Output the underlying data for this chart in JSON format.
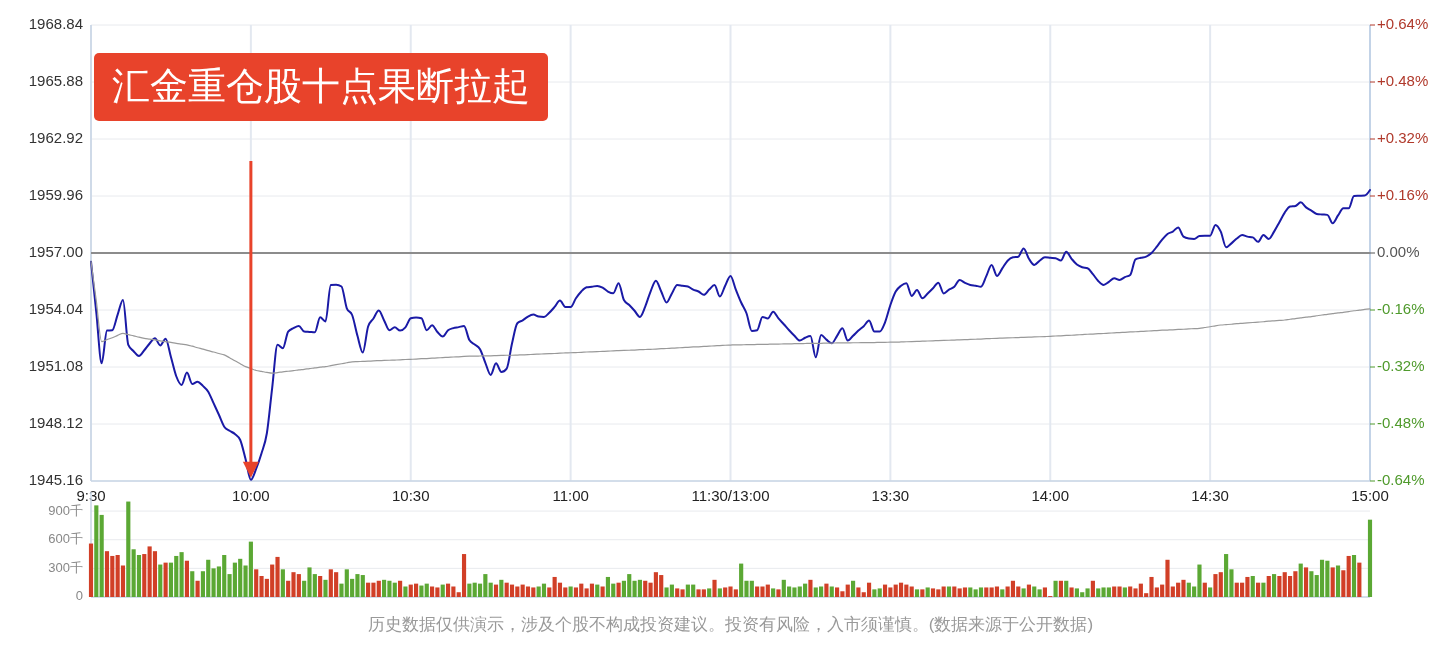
{
  "chart_data": [
    {
      "type": "line",
      "categories": [
        "9:30",
        null,
        null,
        null,
        null,
        null,
        null,
        null,
        null,
        null,
        null,
        null,
        null,
        null,
        null,
        null,
        null,
        null,
        null,
        null,
        null,
        null,
        null,
        null,
        null,
        null,
        null,
        null,
        null,
        null,
        "10:00",
        null,
        null,
        null,
        null,
        null,
        null,
        null,
        null,
        null,
        null,
        null,
        null,
        null,
        null,
        null,
        null,
        null,
        null,
        null,
        null,
        null,
        null,
        null,
        null,
        null,
        null,
        null,
        null,
        null,
        "10:30",
        null,
        null,
        null,
        null,
        null,
        null,
        null,
        null,
        null,
        null,
        null,
        null,
        null,
        null,
        null,
        null,
        null,
        null,
        null,
        null,
        null,
        null,
        null,
        null,
        null,
        null,
        null,
        null,
        null,
        "11:00",
        null,
        null,
        null,
        null,
        null,
        null,
        null,
        null,
        null,
        null,
        null,
        null,
        null,
        null,
        null,
        null,
        null,
        null,
        null,
        null,
        null,
        null,
        null,
        null,
        null,
        null,
        null,
        null,
        null,
        "11:30/13:00",
        null,
        null,
        null,
        null,
        null,
        null,
        null,
        null,
        null,
        null,
        null,
        null,
        null,
        null,
        null,
        null,
        null,
        null,
        null,
        null,
        null,
        null,
        null,
        null,
        null,
        null,
        null,
        null,
        null,
        "13:30",
        null,
        null,
        null,
        null,
        null,
        null,
        null,
        null,
        null,
        null,
        null,
        null,
        null,
        null,
        null,
        null,
        null,
        null,
        null,
        null,
        null,
        null,
        null,
        null,
        null,
        null,
        null,
        null,
        null,
        "14:00",
        null,
        null,
        null,
        null,
        null,
        null,
        null,
        null,
        null,
        null,
        null,
        null,
        null,
        null,
        null,
        null,
        null,
        null,
        null,
        null,
        null,
        null,
        null,
        null,
        null,
        null,
        null,
        null,
        null,
        "14:30",
        null,
        null,
        null,
        null,
        null,
        null,
        null,
        null,
        null,
        null,
        null,
        null,
        null,
        null,
        null,
        null,
        null,
        null,
        null,
        null,
        null,
        null,
        null,
        null,
        null,
        null,
        null,
        null,
        null,
        "15:00"
      ],
      "ylim": [
        1945.16,
        1968.84
      ],
      "yticks": [
        1945.16,
        1948.12,
        1951.08,
        1954.04,
        {
          "value": 1957,
          "label": "1957.00"
        },
        1959.96,
        1962.92,
        1965.88,
        1968.84
      ],
      "y2lim": [
        -0.64,
        0.64
      ],
      "y2ticks": [
        {
          "value": -0.64,
          "label": "-0.64%"
        },
        {
          "value": -0.48,
          "label": "-0.48%"
        },
        {
          "value": -0.32,
          "label": "-0.32%"
        },
        {
          "value": -0.16,
          "label": "-0.16%"
        },
        {
          "value": 0,
          "label": "0.00%"
        },
        {
          "value": 0.16,
          "label": "+0.16%"
        },
        {
          "value": 0.32,
          "label": "+0.32%"
        },
        {
          "value": 0.48,
          "label": "+0.48%"
        },
        {
          "value": 0.64,
          "label": "+0.64%"
        }
      ],
      "grid": true,
      "ref_lines": [
        {
          "axis": "y",
          "value": 1957,
          "color": "#8c8c8c"
        }
      ],
      "series": [
        {
          "color": "#1a1aa6",
          "values": [
            1956.55,
            1953.9,
            1951.27,
            1952.97,
            1952.99,
            1953.8,
            1954.56,
            1952.23,
            1951.9,
            1951.65,
            1951.95,
            1952.3,
            1952.57,
            1952.2,
            1952.55,
            1951.6,
            1950.6,
            1950.15,
            1950.79,
            1950.2,
            1950.32,
            1950.1,
            1949.8,
            1949.2,
            1948.6,
            1947.98,
            1947.77,
            1947.6,
            1947.29,
            1946.3,
            1945.22,
            1945.8,
            1946.6,
            1947.64,
            1950.0,
            1952.23,
            1952.05,
            1952.92,
            1953.1,
            1953.21,
            1952.92,
            1952.9,
            1952.88,
            1953.66,
            1953.44,
            1955.34,
            1955.35,
            1955.26,
            1954.13,
            1953.78,
            1952.7,
            1951.83,
            1953.18,
            1953.6,
            1954.01,
            1953.5,
            1952.99,
            1953.14,
            1952.97,
            1953.14,
            1953.61,
            1953.65,
            1953.61,
            1952.99,
            1953.25,
            1952.9,
            1952.66,
            1952.99,
            1953.1,
            1953.15,
            1953.21,
            1952.48,
            1952.25,
            1952.0,
            1951.3,
            1950.67,
            1951.27,
            1950.82,
            1951.0,
            1952.3,
            1953.35,
            1953.5,
            1953.7,
            1953.8,
            1953.7,
            1953.68,
            1953.9,
            1954.2,
            1954.53,
            1954.2,
            1954.19,
            1954.65,
            1955.0,
            1955.22,
            1955.25,
            1955.29,
            1955.2,
            1955.0,
            1954.91,
            1955.43,
            1954.56,
            1954.3,
            1954.0,
            1953.68,
            1954.22,
            1955.0,
            1955.56,
            1955.0,
            1954.43,
            1954.9,
            1955.34,
            1955.3,
            1955.26,
            1955.1,
            1955.0,
            1954.83,
            1955.1,
            1955.34,
            1954.74,
            1955.3,
            1955.81,
            1955.1,
            1954.43,
            1953.87,
            1952.95,
            1952.99,
            1953.68,
            1953.6,
            1953.95,
            1953.6,
            1953.3,
            1952.99,
            1952.7,
            1952.45,
            1952.6,
            1952.69,
            1951.58,
            1952.74,
            1952.5,
            1952.31,
            1952.7,
            1953.09,
            1952.45,
            1952.7,
            1952.97,
            1953.2,
            1953.49,
            1952.92,
            1952.92,
            1953.4,
            1954.3,
            1955.0,
            1955.3,
            1955.43,
            1954.77,
            1955.08,
            1954.65,
            1954.9,
            1955.17,
            1955.46,
            1954.9,
            1955.1,
            1955.25,
            1955.6,
            1955.45,
            1955.34,
            1955.3,
            1955.25,
            1955.8,
            1956.38,
            1955.81,
            1956.2,
            1956.6,
            1956.78,
            1956.81,
            1957.24,
            1956.7,
            1956.38,
            1956.6,
            1956.78,
            1956.75,
            1956.73,
            1956.61,
            1957.07,
            1956.7,
            1956.4,
            1956.26,
            1956.21,
            1955.9,
            1955.55,
            1955.34,
            1955.5,
            1955.69,
            1955.6,
            1955.75,
            1955.86,
            1956.67,
            1956.75,
            1956.81,
            1957.0,
            1957.33,
            1957.7,
            1957.99,
            1958.11,
            1958.33,
            1957.85,
            1957.75,
            1957.73,
            1957.88,
            1957.9,
            1957.9,
            1958.46,
            1958.11,
            1957.3,
            1957.5,
            1957.75,
            1957.93,
            1957.85,
            1957.81,
            1957.58,
            1957.93,
            1957.73,
            1958.11,
            1958.6,
            1959.1,
            1959.41,
            1959.44,
            1959.63,
            1959.37,
            1959.2,
            1959.03,
            1959.0,
            1958.98,
            1958.54,
            1958.95,
            1959.32,
            1959.32,
            1959.96,
            1959.97,
            1959.98,
            1960.27
          ]
        },
        {
          "color": "#999999",
          "values": [
            1956.55,
            1954.5,
            1952.4,
            1952.5,
            1952.6,
            1952.72,
            1952.83,
            1952.76,
            1952.7,
            1952.63,
            1952.57,
            1952.53,
            1952.49,
            1952.44,
            1952.4,
            1952.36,
            1952.31,
            1952.27,
            1952.23,
            1952.16,
            1952.08,
            1952.01,
            1951.93,
            1951.86,
            1951.78,
            1951.71,
            1951.56,
            1951.4,
            1951.25,
            1951.1,
            1951.0,
            1950.9,
            1950.85,
            1950.8,
            1950.76,
            1950.79,
            1950.83,
            1950.86,
            1950.89,
            1950.93,
            1950.96,
            1951.0,
            1951.03,
            1951.07,
            1951.1,
            1951.15,
            1951.2,
            1951.25,
            1951.3,
            1951.35,
            1951.36,
            1951.37,
            1951.38,
            1951.4,
            1951.41,
            1951.42,
            1951.43,
            1951.44,
            1951.45,
            1951.47,
            1951.48,
            1951.49,
            1951.51,
            1951.52,
            1951.54,
            1951.55,
            1951.57,
            1951.58,
            1951.6,
            1951.61,
            1951.63,
            1951.64,
            1951.64,
            1951.65,
            1951.66,
            1951.66,
            1951.67,
            1951.68,
            1951.69,
            1951.69,
            1951.7,
            1951.71,
            1951.72,
            1951.74,
            1951.75,
            1951.76,
            1951.77,
            1951.78,
            1951.8,
            1951.81,
            1951.82,
            1951.83,
            1951.84,
            1951.86,
            1951.87,
            1951.88,
            1951.89,
            1951.9,
            1951.92,
            1951.93,
            1951.94,
            1951.95,
            1951.96,
            1951.98,
            1951.99,
            1952.0,
            1952.01,
            1952.03,
            1952.04,
            1952.06,
            1952.07,
            1952.09,
            1952.1,
            1952.12,
            1952.13,
            1952.15,
            1952.16,
            1952.18,
            1952.19,
            1952.21,
            1952.22,
            1952.23,
            1952.23,
            1952.24,
            1952.24,
            1952.25,
            1952.25,
            1952.26,
            1952.27,
            1952.27,
            1952.28,
            1952.28,
            1952.29,
            1952.29,
            1952.3,
            1952.31,
            1952.31,
            1952.31,
            1952.32,
            1952.32,
            1952.33,
            1952.33,
            1952.33,
            1952.34,
            1952.34,
            1952.35,
            1952.35,
            1952.35,
            1952.36,
            1952.36,
            1952.37,
            1952.37,
            1952.38,
            1952.39,
            1952.4,
            1952.41,
            1952.42,
            1952.43,
            1952.44,
            1952.45,
            1952.46,
            1952.47,
            1952.48,
            1952.49,
            1952.5,
            1952.51,
            1952.52,
            1952.53,
            1952.55,
            1952.56,
            1952.57,
            1952.58,
            1952.59,
            1952.6,
            1952.61,
            1952.62,
            1952.63,
            1952.64,
            1952.65,
            1952.66,
            1952.67,
            1952.69,
            1952.7,
            1952.72,
            1952.73,
            1952.75,
            1952.76,
            1952.78,
            1952.79,
            1952.81,
            1952.82,
            1952.84,
            1952.85,
            1952.87,
            1952.88,
            1952.9,
            1952.91,
            1952.93,
            1952.94,
            1952.96,
            1952.97,
            1952.99,
            1953.0,
            1953.01,
            1953.03,
            1953.04,
            1953.06,
            1953.07,
            1953.09,
            1953.13,
            1953.17,
            1953.22,
            1953.26,
            1953.28,
            1953.3,
            1953.33,
            1953.35,
            1953.37,
            1953.39,
            1953.41,
            1953.43,
            1953.46,
            1953.48,
            1953.5,
            1953.52,
            1953.56,
            1953.59,
            1953.63,
            1953.67,
            1953.7,
            1953.74,
            1953.78,
            1953.81,
            1953.85,
            1953.89,
            1953.92,
            1953.96,
            1954.0,
            1954.03,
            1954.07,
            1954.1
          ]
        }
      ],
      "annotations": [
        "汇金重仓股十点果断拉起",
        "历史数据仅供演示，涉及个股不构成投资建议。投资有风险，入市须谨慎。(数据来源于公开数据)"
      ]
    },
    {
      "type": "bar",
      "ylim": [
        0,
        1100
      ],
      "yticks": [
        0,
        {
          "value": 300,
          "label": "300千"
        },
        {
          "value": 600,
          "label": "600千"
        },
        {
          "value": 900,
          "label": "900千"
        }
      ],
      "grid": "y",
      "tick_labels": "y",
      "categories": [
        null,
        null,
        null,
        null,
        null,
        null,
        null,
        null,
        null,
        null,
        null,
        null,
        null,
        null,
        null,
        null,
        null,
        null,
        null,
        null,
        null,
        null,
        null,
        null,
        null,
        null,
        null,
        null,
        null,
        null,
        null,
        null,
        null,
        null,
        null,
        null,
        null,
        null,
        null,
        null,
        null,
        null,
        null,
        null,
        null,
        null,
        null,
        null,
        null,
        null,
        null,
        null,
        null,
        null,
        null,
        null,
        null,
        null,
        null,
        null,
        null,
        null,
        null,
        null,
        null,
        null,
        null,
        null,
        null,
        null,
        null,
        null,
        null,
        null,
        null,
        null,
        null,
        null,
        null,
        null,
        null,
        null,
        null,
        null,
        null,
        null,
        null,
        null,
        null,
        null,
        null,
        null,
        null,
        null,
        null,
        null,
        null,
        null,
        null,
        null,
        null,
        null,
        null,
        null,
        null,
        null,
        null,
        null,
        null,
        null,
        null,
        null,
        null,
        null,
        null,
        null,
        null,
        null,
        null,
        null,
        null,
        null,
        null,
        null,
        null,
        null,
        null,
        null,
        null,
        null,
        null,
        null,
        null,
        null,
        null,
        null,
        null,
        null,
        null,
        null,
        null,
        null,
        null,
        null,
        null,
        null,
        null,
        null,
        null,
        null,
        null,
        null,
        null,
        null,
        null,
        null,
        null,
        null,
        null,
        null,
        null,
        null,
        null,
        null,
        null,
        null,
        null,
        null,
        null,
        null,
        null,
        null,
        null,
        null,
        null,
        null,
        null,
        null,
        null,
        null,
        null,
        null,
        null,
        null,
        null,
        null,
        null,
        null,
        null,
        null,
        null,
        null,
        null,
        null,
        null,
        null,
        null,
        null,
        null,
        null,
        null,
        null,
        null,
        null,
        null,
        null,
        null,
        null,
        null,
        null,
        null,
        null,
        null,
        null,
        null,
        null,
        null,
        null,
        null,
        null,
        null,
        null,
        null,
        null,
        null,
        null,
        null,
        null,
        null,
        null,
        null,
        null,
        null,
        null,
        null,
        null,
        null,
        null,
        null,
        null,
        null
      ],
      "values": [
        560,
        960,
        860,
        480,
        430,
        440,
        330,
        1000,
        500,
        440,
        450,
        530,
        480,
        340,
        360,
        360,
        430,
        470,
        380,
        270,
        170,
        270,
        390,
        300,
        320,
        440,
        240,
        360,
        400,
        330,
        580,
        290,
        220,
        190,
        340,
        420,
        290,
        170,
        260,
        240,
        170,
        310,
        240,
        220,
        180,
        290,
        260,
        140,
        290,
        190,
        240,
        230,
        150,
        150,
        170,
        180,
        170,
        150,
        170,
        110,
        130,
        140,
        120,
        140,
        110,
        100,
        130,
        140,
        110,
        50,
        450,
        140,
        150,
        140,
        240,
        150,
        130,
        180,
        150,
        130,
        110,
        130,
        110,
        100,
        110,
        140,
        100,
        210,
        150,
        100,
        110,
        100,
        140,
        90,
        140,
        130,
        110,
        210,
        140,
        150,
        170,
        240,
        170,
        180,
        170,
        150,
        260,
        230,
        100,
        130,
        90,
        80,
        130,
        130,
        80,
        80,
        90,
        180,
        90,
        100,
        110,
        80,
        350,
        170,
        170,
        110,
        110,
        130,
        90,
        80,
        180,
        110,
        100,
        110,
        140,
        180,
        100,
        110,
        140,
        110,
        100,
        60,
        130,
        170,
        100,
        50,
        150,
        80,
        90,
        130,
        100,
        130,
        150,
        130,
        110,
        80,
        80,
        100,
        90,
        80,
        110,
        110,
        110,
        90,
        100,
        100,
        80,
        100,
        100,
        100,
        110,
        80,
        110,
        170,
        110,
        90,
        130,
        110,
        80,
        100,
        10,
        170,
        170,
        170,
        100,
        90,
        50,
        90,
        170,
        90,
        100,
        100,
        110,
        110,
        100,
        110,
        90,
        140,
        40,
        210,
        100,
        130,
        390,
        110,
        150,
        180,
        150,
        110,
        340,
        150,
        100,
        240,
        260,
        450,
        290,
        150,
        150,
        210,
        220,
        150,
        150,
        220,
        240,
        220,
        260,
        220,
        270,
        350,
        310,
        270,
        230,
        390,
        380,
        310,
        330,
        280,
        430,
        440,
        360,
        null,
        810
      ],
      "colors": [
        "#d13f27",
        "#5ba834",
        "#5ba834",
        "#d13f27",
        "#d13f27",
        "#d13f27",
        "#d13f27",
        "#5ba834",
        "#5ba834",
        "#5ba834",
        "#d13f27",
        "#d13f27",
        "#d13f27",
        "#5ba834",
        "#d13f27",
        "#5ba834",
        "#5ba834",
        "#5ba834",
        "#d13f27",
        "#5ba834",
        "#d13f27",
        "#5ba834",
        "#5ba834",
        "#5ba834",
        "#5ba834",
        "#5ba834",
        "#5ba834",
        "#5ba834",
        "#5ba834",
        "#5ba834",
        "#5ba834",
        "#d13f27",
        "#d13f27",
        "#d13f27",
        "#d13f27",
        "#d13f27",
        "#5ba834",
        "#d13f27",
        "#d13f27",
        "#d13f27",
        "#5ba834",
        "#5ba834",
        "#5ba834",
        "#d13f27",
        "#5ba834",
        "#d13f27",
        "#d13f27",
        "#5ba834",
        "#5ba834",
        "#5ba834",
        "#5ba834",
        "#5ba834",
        "#d13f27",
        "#d13f27",
        "#d13f27",
        "#5ba834",
        "#5ba834",
        "#5ba834",
        "#d13f27",
        "#5ba834",
        "#d13f27",
        "#d13f27",
        "#5ba834",
        "#5ba834",
        "#d13f27",
        "#d13f27",
        "#5ba834",
        "#d13f27",
        "#d13f27",
        "#d13f27",
        "#d13f27",
        "#5ba834",
        "#5ba834",
        "#5ba834",
        "#5ba834",
        "#5ba834",
        "#d13f27",
        "#5ba834",
        "#d13f27",
        "#d13f27",
        "#d13f27",
        "#d13f27",
        "#d13f27",
        "#d13f27",
        "#5ba834",
        "#5ba834",
        "#d13f27",
        "#d13f27",
        "#d13f27",
        "#d13f27",
        "#5ba834",
        "#d13f27",
        "#d13f27",
        "#d13f27",
        "#d13f27",
        "#5ba834",
        "#d13f27",
        "#5ba834",
        "#5ba834",
        "#d13f27",
        "#5ba834",
        "#5ba834",
        "#5ba834",
        "#5ba834",
        "#d13f27",
        "#d13f27",
        "#d13f27",
        "#d13f27",
        "#5ba834",
        "#5ba834",
        "#d13f27",
        "#d13f27",
        "#5ba834",
        "#5ba834",
        "#d13f27",
        "#d13f27",
        "#5ba834",
        "#d13f27",
        "#5ba834",
        "#d13f27",
        "#d13f27",
        "#d13f27",
        "#5ba834",
        "#5ba834",
        "#5ba834",
        "#d13f27",
        "#d13f27",
        "#d13f27",
        "#5ba834",
        "#d13f27",
        "#5ba834",
        "#5ba834",
        "#5ba834",
        "#5ba834",
        "#5ba834",
        "#d13f27",
        "#5ba834",
        "#5ba834",
        "#d13f27",
        "#5ba834",
        "#d13f27",
        "#d13f27",
        "#d13f27",
        "#5ba834",
        "#d13f27",
        "#d13f27",
        "#d13f27",
        "#5ba834",
        "#5ba834",
        "#d13f27",
        "#d13f27",
        "#d13f27",
        "#d13f27",
        "#d13f27",
        "#d13f27",
        "#5ba834",
        "#d13f27",
        "#5ba834",
        "#d13f27",
        "#d13f27",
        "#d13f27",
        "#5ba834",
        "#d13f27",
        "#d13f27",
        "#d13f27",
        "#5ba834",
        "#5ba834",
        "#5ba834",
        "#d13f27",
        "#d13f27",
        "#d13f27",
        "#5ba834",
        "#d13f27",
        "#d13f27",
        "#d13f27",
        "#5ba834",
        "#d13f27",
        "#5ba834",
        "#5ba834",
        "#d13f27",
        "#d13f27",
        "#5ba834",
        "#d13f27",
        "#5ba834",
        "#d13f27",
        "#5ba834",
        "#5ba834",
        "#5ba834",
        "#d13f27",
        "#5ba834",
        "#5ba834",
        "#5ba834",
        "#d13f27",
        "#d13f27",
        "#5ba834",
        "#d13f27",
        "#d13f27",
        "#d13f27",
        "#d13f27",
        "#d13f27",
        "#d13f27",
        "#d13f27",
        "#d13f27",
        "#d13f27",
        "#d13f27",
        "#d13f27",
        "#5ba834",
        "#5ba834",
        "#5ba834",
        "#d13f27",
        "#5ba834",
        "#d13f27",
        "#d13f27",
        "#5ba834",
        "#5ba834",
        "#d13f27",
        "#d13f27",
        "#d13f27",
        "#5ba834",
        "#d13f27",
        "#5ba834",
        "#d13f27",
        "#5ba834",
        "#d13f27",
        "#d13f27",
        "#d13f27",
        "#d13f27",
        "#5ba834",
        "#d13f27",
        "#5ba834",
        "#5ba834",
        "#5ba834",
        "#5ba834",
        "#d13f27",
        "#5ba834",
        "#d13f27",
        "#d13f27",
        "#5ba834",
        "#d13f27",
        null,
        "#5ba834"
      ]
    }
  ]
}
